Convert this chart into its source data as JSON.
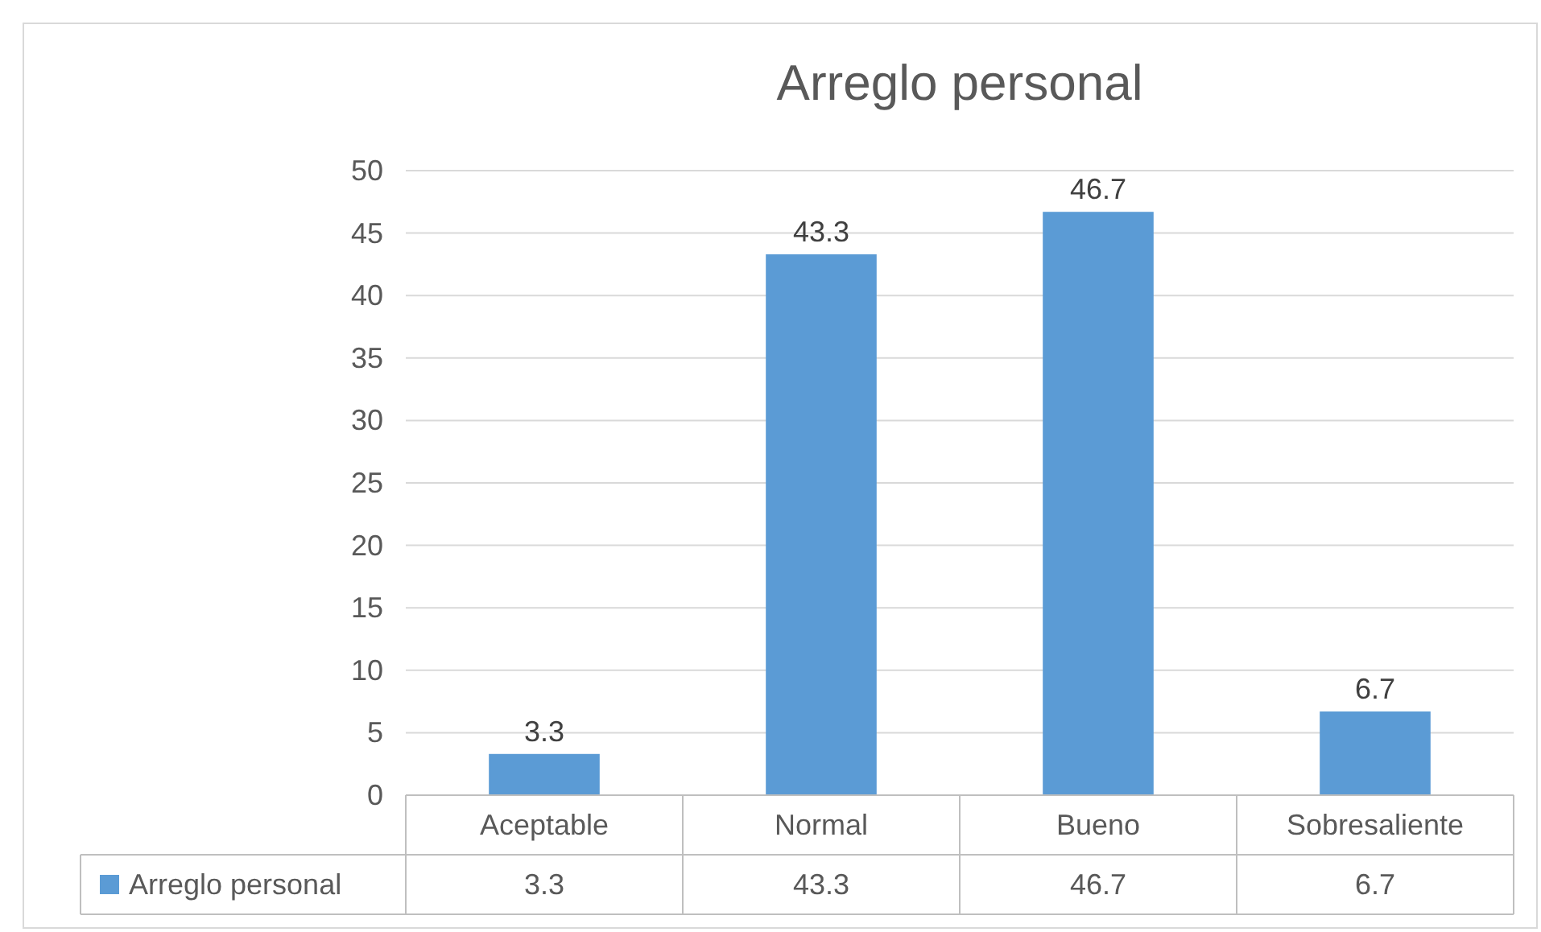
{
  "chart_data": {
    "type": "bar",
    "title": "Arreglo personal",
    "categories": [
      "Aceptable",
      "Normal",
      "Bueno",
      "Sobresaliente"
    ],
    "series": [
      {
        "name": "Arreglo personal",
        "color": "#5b9bd5",
        "values": [
          3.3,
          43.3,
          46.7,
          6.7
        ]
      }
    ],
    "annotations": [
      {
        "text": "3.3",
        "x": "Aceptable",
        "y": 3.3
      },
      {
        "text": "43.3",
        "x": "Normal",
        "y": 43.3
      },
      {
        "text": "46.7",
        "x": "Bueno",
        "y": 46.7
      },
      {
        "text": "6.7",
        "x": "Sobresaliente",
        "y": 6.7
      }
    ],
    "ylim": [
      0,
      50
    ],
    "yticks": [
      0,
      5,
      10,
      15,
      20,
      25,
      30,
      35,
      40,
      45,
      50
    ],
    "grid": "y",
    "data_labels": true,
    "legend": "bottom"
  }
}
